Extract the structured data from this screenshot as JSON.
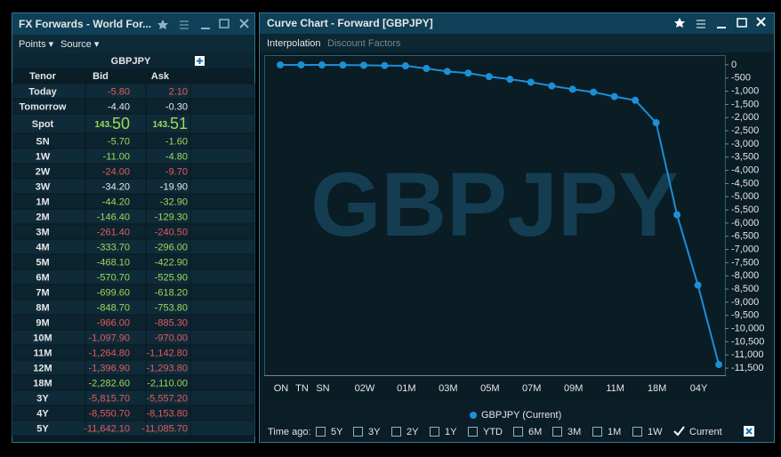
{
  "left_panel": {
    "title": "FX Forwards - World For...",
    "toolbar": [
      "Points ▾",
      "Source ▾"
    ],
    "table": {
      "instrument": "GBPJPY",
      "columns": [
        "Tenor",
        "Bid",
        "Ask"
      ],
      "rows": [
        {
          "tenor": "Today",
          "bid": "-5.80",
          "ask": "2.10",
          "color": "#e45b5b"
        },
        {
          "tenor": "Tomorrow",
          "bid": "-4.40",
          "ask": "-0.30",
          "color": "#e8e8e8"
        },
        {
          "tenor": "Spot",
          "bid": "143.50",
          "ask": "143.51",
          "color": "#9fd85a"
        },
        {
          "tenor": "SN",
          "bid": "-5.70",
          "ask": "-1.60",
          "color": "#9fd85a"
        },
        {
          "tenor": "1W",
          "bid": "-11.00",
          "ask": "-4.80",
          "color": "#9fd85a"
        },
        {
          "tenor": "2W",
          "bid": "-24.00",
          "ask": "-9.70",
          "color": "#e45b5b"
        },
        {
          "tenor": "3W",
          "bid": "-34.20",
          "ask": "-19.90",
          "color": "#e8e8e8"
        },
        {
          "tenor": "1M",
          "bid": "-44.20",
          "ask": "-32.90",
          "color": "#9fd85a"
        },
        {
          "tenor": "2M",
          "bid": "-146.40",
          "ask": "-129.30",
          "color": "#9fd85a"
        },
        {
          "tenor": "3M",
          "bid": "-261.40",
          "ask": "-240.50",
          "color": "#e45b5b"
        },
        {
          "tenor": "4M",
          "bid": "-333.70",
          "ask": "-296.00",
          "color": "#9fd85a"
        },
        {
          "tenor": "5M",
          "bid": "-468.10",
          "ask": "-422.90",
          "color": "#9fd85a"
        },
        {
          "tenor": "6M",
          "bid": "-570.70",
          "ask": "-525.90",
          "color": "#9fd85a"
        },
        {
          "tenor": "7M",
          "bid": "-699.60",
          "ask": "-618.20",
          "color": "#9fd85a"
        },
        {
          "tenor": "8M",
          "bid": "-848.70",
          "ask": "-753.80",
          "color": "#9fd85a"
        },
        {
          "tenor": "9M",
          "bid": "-966.00",
          "ask": "-885.30",
          "color": "#e45b5b"
        },
        {
          "tenor": "10M",
          "bid": "-1,097.90",
          "ask": "-970.00",
          "color": "#e45b5b"
        },
        {
          "tenor": "11M",
          "bid": "-1,264.80",
          "ask": "-1,142.80",
          "color": "#e45b5b"
        },
        {
          "tenor": "12M",
          "bid": "-1,396.90",
          "ask": "-1,293.80",
          "color": "#e45b5b"
        },
        {
          "tenor": "18M",
          "bid": "-2,282.60",
          "ask": "-2,110.00",
          "color": "#9fd85a"
        },
        {
          "tenor": "3Y",
          "bid": "-5,815.70",
          "ask": "-5,557.20",
          "color": "#e45b5b"
        },
        {
          "tenor": "4Y",
          "bid": "-8,550.70",
          "ask": "-8,153.80",
          "color": "#e45b5b"
        },
        {
          "tenor": "5Y",
          "bid": "-11,642.10",
          "ask": "-11,085.70",
          "color": "#e45b5b"
        }
      ]
    }
  },
  "right_panel": {
    "title": "Curve Chart - Forward [GBPJPY]",
    "tabs": [
      "Interpolation",
      "Discount Factors"
    ],
    "time_ago": {
      "label": "Time ago:",
      "options": [
        {
          "label": "5Y",
          "checked": false
        },
        {
          "label": "3Y",
          "checked": false
        },
        {
          "label": "2Y",
          "checked": false
        },
        {
          "label": "1Y",
          "checked": false
        },
        {
          "label": "YTD",
          "checked": false
        },
        {
          "label": "6M",
          "checked": false
        },
        {
          "label": "3M",
          "checked": false
        },
        {
          "label": "1M",
          "checked": false
        },
        {
          "label": "1W",
          "checked": false
        },
        {
          "label": "Current",
          "checked": true
        }
      ]
    }
  },
  "chart_data": {
    "type": "line",
    "watermark": "GBPJPY",
    "categories": [
      "ON",
      "TN",
      "SN",
      null,
      "02W",
      null,
      "01M",
      null,
      "03M",
      null,
      "05M",
      null,
      "07M",
      null,
      "09M",
      null,
      "11M",
      null,
      "18M",
      null,
      "04Y",
      null
    ],
    "series": [
      {
        "name": "GBPJPY (Current)",
        "color": "#1c8fd8",
        "values": [
          -2,
          -2,
          -4,
          -8,
          -17,
          -27,
          -39,
          -138,
          -251,
          -315,
          -446,
          -548,
          -659,
          -801,
          -926,
          -1034,
          -1204,
          -1345,
          -2196,
          -5686,
          -8352,
          -11364
        ]
      }
    ],
    "ylim": [
      -11700,
      300
    ],
    "yticks": [
      0,
      -500,
      {
        "value": -1000,
        "label": "-1,000"
      },
      {
        "value": -1500,
        "label": "-1,500"
      },
      {
        "value": -2000,
        "label": "-2,000"
      },
      {
        "value": -2500,
        "label": "-2,500"
      },
      {
        "value": -3000,
        "label": "-3,000"
      },
      {
        "value": -3500,
        "label": "-3,500"
      },
      {
        "value": -4000,
        "label": "-4,000"
      },
      {
        "value": -4500,
        "label": "-4,500"
      },
      {
        "value": -5000,
        "label": "-5,000"
      },
      {
        "value": -5500,
        "label": "-5,500"
      },
      {
        "value": -6000,
        "label": "-6,000"
      },
      {
        "value": -6500,
        "label": "-6,500"
      },
      {
        "value": -7000,
        "label": "-7,000"
      },
      {
        "value": -7500,
        "label": "-7,500"
      },
      {
        "value": -8000,
        "label": "-8,000"
      },
      {
        "value": -8500,
        "label": "-8,500"
      },
      {
        "value": -9000,
        "label": "-9,000"
      },
      {
        "value": -9500,
        "label": "-9,500"
      },
      {
        "value": -10000,
        "label": "-10,000"
      },
      {
        "value": -10500,
        "label": "-10,500"
      },
      {
        "value": -11000,
        "label": "-11,000"
      },
      {
        "value": -11500,
        "label": "-11,500"
      }
    ],
    "grid": false
  }
}
